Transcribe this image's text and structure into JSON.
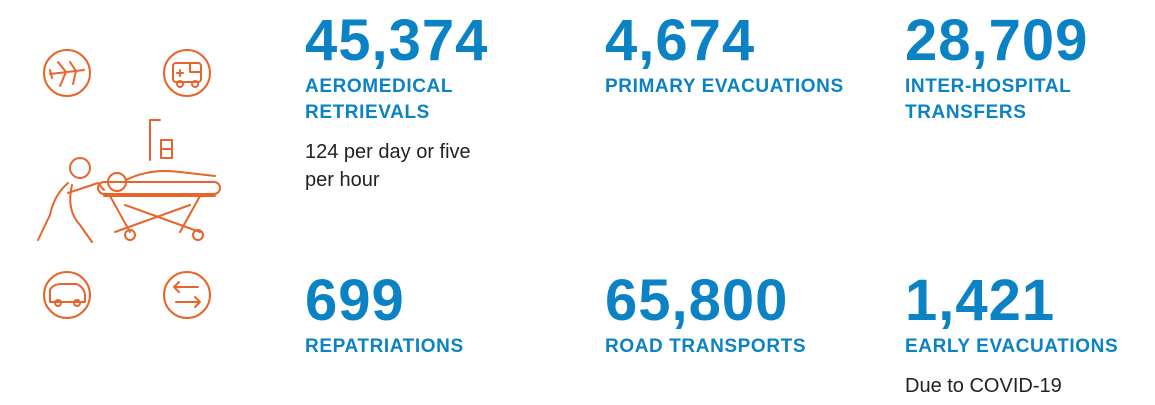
{
  "stats": [
    {
      "value": "45,374",
      "label": "AEROMEDICAL RETRIEVALS",
      "note": "124 per day or five per hour"
    },
    {
      "value": "4,674",
      "label": "PRIMARY EVACUATIONS"
    },
    {
      "value": "28,709",
      "label": "INTER-HOSPITAL TRANSFERS"
    },
    {
      "value": "699",
      "label": "REPATRIATIONS"
    },
    {
      "value": "65,800",
      "label": "ROAD TRANSPORTS"
    },
    {
      "value": "1,421",
      "label": "EARLY EVACUATIONS",
      "note": "Due to COVID-19"
    }
  ]
}
